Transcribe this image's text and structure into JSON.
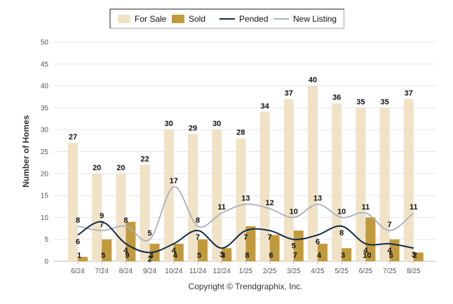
{
  "chart_data": {
    "type": "bar",
    "ylabel": "Number of Homes",
    "ylim": [
      0,
      50
    ],
    "yticks": [
      0,
      5,
      10,
      15,
      20,
      25,
      30,
      35,
      40,
      45,
      50
    ],
    "categories": [
      "6/24",
      "7/24",
      "8/24",
      "9/24",
      "10/24",
      "11/24",
      "12/24",
      "1/25",
      "2/25",
      "3/25",
      "4/25",
      "5/25",
      "6/25",
      "7/25",
      "8/25"
    ],
    "series": [
      {
        "name": "For Sale",
        "kind": "bar",
        "color": "#f0e2c6",
        "values": [
          27,
          20,
          20,
          22,
          30,
          29,
          30,
          28,
          34,
          37,
          40,
          36,
          35,
          35,
          37
        ]
      },
      {
        "name": "Sold",
        "kind": "bar",
        "color": "#c19a3e",
        "values": [
          1,
          5,
          9,
          4,
          4,
          5,
          3,
          8,
          6,
          7,
          4,
          3,
          10,
          5,
          2
        ]
      },
      {
        "name": "Pended",
        "kind": "line",
        "color": "#0f2a4a",
        "values": [
          6,
          9,
          4,
          2,
          4,
          7,
          3,
          7,
          7,
          5,
          6,
          8,
          4,
          4,
          3
        ]
      },
      {
        "name": "New Listing",
        "kind": "line",
        "color": "#a9b0c2",
        "values": [
          8,
          7,
          8,
          5,
          17,
          8,
          11,
          13,
          12,
          10,
          13,
          10,
          11,
          7,
          11
        ]
      }
    ],
    "grid": true,
    "legend": "top-center"
  },
  "footer": {
    "copyright": "Copyright © Trendgraphix, Inc."
  }
}
